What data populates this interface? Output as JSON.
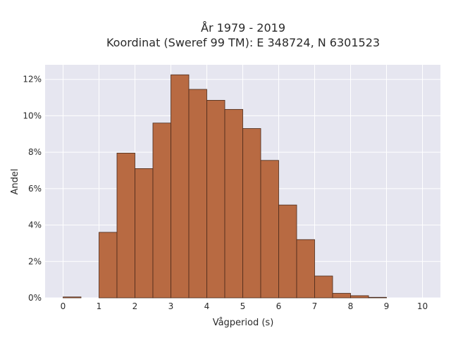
{
  "chart_data": {
    "type": "bar",
    "title_line1": "År 1979 - 2019",
    "title_line2": "Koordinat (Sweref 99 TM): E 348724, N 6301523",
    "xlabel": "Vågperiod (s)",
    "ylabel": "Andel",
    "bin_width": 0.5,
    "bins": [
      {
        "start": 0.0,
        "value": 0.05
      },
      {
        "start": 0.5,
        "value": 0.0
      },
      {
        "start": 1.0,
        "value": 3.6
      },
      {
        "start": 1.5,
        "value": 7.95
      },
      {
        "start": 2.0,
        "value": 7.1
      },
      {
        "start": 2.5,
        "value": 9.6
      },
      {
        "start": 3.0,
        "value": 12.25
      },
      {
        "start": 3.5,
        "value": 11.45
      },
      {
        "start": 4.0,
        "value": 10.85
      },
      {
        "start": 4.5,
        "value": 10.35
      },
      {
        "start": 5.0,
        "value": 9.3
      },
      {
        "start": 5.5,
        "value": 7.55
      },
      {
        "start": 6.0,
        "value": 5.1
      },
      {
        "start": 6.5,
        "value": 3.2
      },
      {
        "start": 7.0,
        "value": 1.2
      },
      {
        "start": 7.5,
        "value": 0.25
      },
      {
        "start": 8.0,
        "value": 0.12
      },
      {
        "start": 8.5,
        "value": 0.03
      }
    ],
    "xlim": [
      -0.5,
      10.5
    ],
    "ylim": [
      0,
      12.8
    ],
    "xticks": [
      {
        "value": 0,
        "label": "0"
      },
      {
        "value": 1,
        "label": "1"
      },
      {
        "value": 2,
        "label": "2"
      },
      {
        "value": 3,
        "label": "3"
      },
      {
        "value": 4,
        "label": "4"
      },
      {
        "value": 5,
        "label": "5"
      },
      {
        "value": 6,
        "label": "6"
      },
      {
        "value": 7,
        "label": "7"
      },
      {
        "value": 8,
        "label": "8"
      },
      {
        "value": 9,
        "label": "9"
      },
      {
        "value": 10,
        "label": "10"
      }
    ],
    "yticks": [
      {
        "value": 0,
        "label": "0%"
      },
      {
        "value": 2,
        "label": "2%"
      },
      {
        "value": 4,
        "label": "4%"
      },
      {
        "value": 6,
        "label": "6%"
      },
      {
        "value": 8,
        "label": "8%"
      },
      {
        "value": 10,
        "label": "10%"
      },
      {
        "value": 12,
        "label": "12%"
      }
    ],
    "grid": true,
    "colors": {
      "bar_fill": "#b86a42",
      "bar_stroke": "#4a2a1a",
      "plot_bg": "#e6e6f0",
      "grid": "#ffffff"
    }
  }
}
